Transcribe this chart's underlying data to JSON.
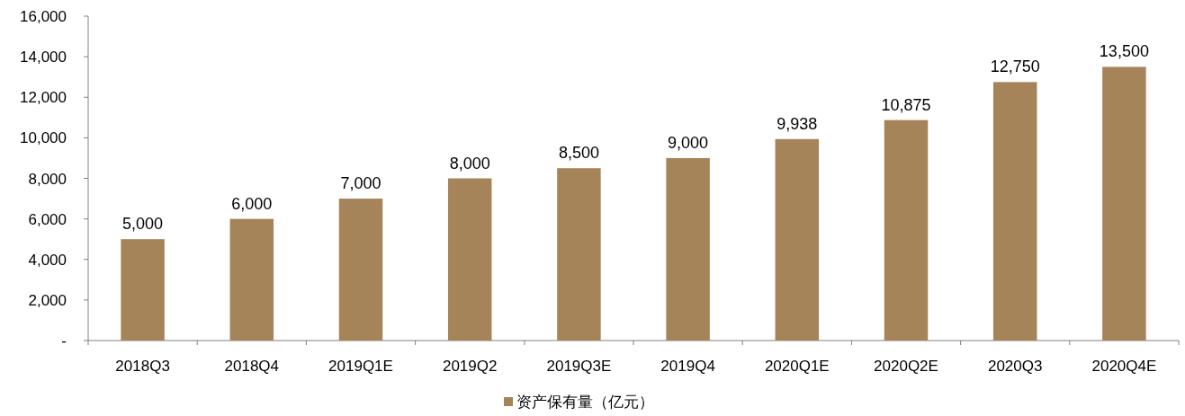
{
  "chart_data": {
    "type": "bar",
    "categories": [
      "2018Q3",
      "2018Q4",
      "2019Q1E",
      "2019Q2",
      "2019Q3E",
      "2019Q4",
      "2020Q1E",
      "2020Q2E",
      "2020Q3",
      "2020Q4E"
    ],
    "series": [
      {
        "name": "资产保有量（亿元）",
        "color": "#a6845a",
        "values": [
          5000,
          6000,
          7000,
          8000,
          8500,
          9000,
          9938,
          10875,
          12750,
          13500
        ],
        "value_labels": [
          "5,000",
          "6,000",
          "7,000",
          "8,000",
          "8,500",
          "9,000",
          "9,938",
          "10,875",
          "12,750",
          "13,500"
        ]
      }
    ],
    "ylim": [
      0,
      16000
    ],
    "yticks": [
      {
        "value": 0,
        "label": "-"
      },
      {
        "value": 2000,
        "label": "2,000"
      },
      {
        "value": 4000,
        "label": "4,000"
      },
      {
        "value": 6000,
        "label": "6,000"
      },
      {
        "value": 8000,
        "label": "8,000"
      },
      {
        "value": 10000,
        "label": "10,000"
      },
      {
        "value": 12000,
        "label": "12,000"
      },
      {
        "value": 14000,
        "label": "14,000"
      },
      {
        "value": 16000,
        "label": "16,000"
      }
    ],
    "legend": "bottom"
  }
}
